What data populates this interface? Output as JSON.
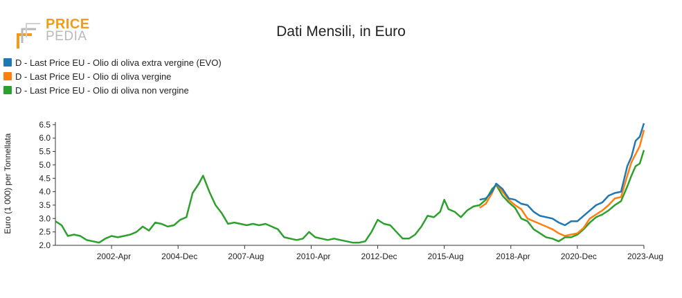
{
  "header": {
    "logo_line1": "PRICE",
    "logo_line2": "PEDIA",
    "title": "Dati Mensili, in Euro"
  },
  "colors": {
    "evo": "#1f77b4",
    "vergine": "#ff7f0e",
    "non_vergine": "#2ca02c",
    "brand_orange": "#f39a1e",
    "brand_grey": "#b9b9b9"
  },
  "legend": [
    {
      "label": "D - Last Price EU - Olio di oliva extra vergine (EVO)",
      "color": "#1f77b4"
    },
    {
      "label": "D - Last Price EU - Olio di oliva vergine",
      "color": "#ff7f0e"
    },
    {
      "label": "D - Last Price EU - Olio di oliva non vergine",
      "color": "#2ca02c"
    }
  ],
  "chart_data": {
    "type": "line",
    "title": "Dati Mensili, in Euro",
    "ylabel": "Euro (1 000) per Tonnellata",
    "xlabel": "",
    "ylim": [
      2.0,
      6.6
    ],
    "xlim": [
      "2000-01",
      "2023-08"
    ],
    "y_ticks": [
      "2.0",
      "2.5",
      "3.0",
      "3.5",
      "4.0",
      "4.5",
      "5.0",
      "5.5",
      "6.0",
      "6.5"
    ],
    "x_ticks": [
      {
        "label": "2002-Apr",
        "date": "2002-04"
      },
      {
        "label": "2004-Dec",
        "date": "2004-12"
      },
      {
        "label": "2007-Aug",
        "date": "2007-08"
      },
      {
        "label": "2010-Apr",
        "date": "2010-04"
      },
      {
        "label": "2012-Dec",
        "date": "2012-12"
      },
      {
        "label": "2015-Aug",
        "date": "2015-08"
      },
      {
        "label": "2018-Apr",
        "date": "2018-04"
      },
      {
        "label": "2020-Dec",
        "date": "2020-12"
      },
      {
        "label": "2023-Aug",
        "date": "2023-08"
      }
    ],
    "grid": false,
    "legend_position": "top-left",
    "series": [
      {
        "name": "D - Last Price EU - Olio di oliva extra vergine (EVO)",
        "color": "#1f77b4",
        "points": [
          [
            "2017-01",
            3.7
          ],
          [
            "2017-04",
            3.75
          ],
          [
            "2017-07",
            4.0
          ],
          [
            "2017-09",
            4.3
          ],
          [
            "2017-12",
            4.1
          ],
          [
            "2018-03",
            3.75
          ],
          [
            "2018-06",
            3.7
          ],
          [
            "2018-09",
            3.55
          ],
          [
            "2018-12",
            3.5
          ],
          [
            "2019-03",
            3.25
          ],
          [
            "2019-06",
            3.1
          ],
          [
            "2019-09",
            3.05
          ],
          [
            "2019-12",
            3.0
          ],
          [
            "2020-03",
            2.85
          ],
          [
            "2020-06",
            2.75
          ],
          [
            "2020-09",
            2.9
          ],
          [
            "2020-12",
            2.9
          ],
          [
            "2021-03",
            3.1
          ],
          [
            "2021-06",
            3.3
          ],
          [
            "2021-09",
            3.5
          ],
          [
            "2021-12",
            3.6
          ],
          [
            "2022-03",
            3.85
          ],
          [
            "2022-06",
            3.95
          ],
          [
            "2022-09",
            4.0
          ],
          [
            "2022-12",
            4.95
          ],
          [
            "2023-02",
            5.3
          ],
          [
            "2023-04",
            5.9
          ],
          [
            "2023-06",
            6.05
          ],
          [
            "2023-08",
            6.55
          ]
        ]
      },
      {
        "name": "D - Last Price EU - Olio di oliva vergine",
        "color": "#ff7f0e",
        "points": [
          [
            "2017-01",
            3.4
          ],
          [
            "2017-04",
            3.55
          ],
          [
            "2017-07",
            3.95
          ],
          [
            "2017-09",
            4.3
          ],
          [
            "2017-12",
            4.0
          ],
          [
            "2018-03",
            3.7
          ],
          [
            "2018-06",
            3.5
          ],
          [
            "2018-09",
            3.35
          ],
          [
            "2018-12",
            3.0
          ],
          [
            "2019-03",
            2.9
          ],
          [
            "2019-06",
            2.8
          ],
          [
            "2019-09",
            2.7
          ],
          [
            "2019-12",
            2.6
          ],
          [
            "2020-03",
            2.45
          ],
          [
            "2020-06",
            2.35
          ],
          [
            "2020-09",
            2.4
          ],
          [
            "2020-12",
            2.45
          ],
          [
            "2021-03",
            2.65
          ],
          [
            "2021-06",
            3.0
          ],
          [
            "2021-09",
            3.15
          ],
          [
            "2021-12",
            3.3
          ],
          [
            "2022-03",
            3.5
          ],
          [
            "2022-06",
            3.75
          ],
          [
            "2022-09",
            3.8
          ],
          [
            "2022-12",
            4.6
          ],
          [
            "2023-02",
            5.1
          ],
          [
            "2023-04",
            5.4
          ],
          [
            "2023-06",
            5.7
          ],
          [
            "2023-08",
            6.3
          ]
        ]
      },
      {
        "name": "D - Last Price EU - Olio di oliva non vergine",
        "color": "#2ca02c",
        "points": [
          [
            "2000-01",
            2.9
          ],
          [
            "2000-04",
            2.75
          ],
          [
            "2000-07",
            2.35
          ],
          [
            "2000-10",
            2.4
          ],
          [
            "2001-01",
            2.35
          ],
          [
            "2001-04",
            2.2
          ],
          [
            "2001-07",
            2.15
          ],
          [
            "2001-10",
            2.1
          ],
          [
            "2002-01",
            2.25
          ],
          [
            "2002-04",
            2.35
          ],
          [
            "2002-07",
            2.3
          ],
          [
            "2002-10",
            2.35
          ],
          [
            "2003-01",
            2.4
          ],
          [
            "2003-04",
            2.5
          ],
          [
            "2003-07",
            2.7
          ],
          [
            "2003-10",
            2.55
          ],
          [
            "2004-01",
            2.85
          ],
          [
            "2004-04",
            2.8
          ],
          [
            "2004-07",
            2.7
          ],
          [
            "2004-10",
            2.75
          ],
          [
            "2005-01",
            2.95
          ],
          [
            "2005-04",
            3.05
          ],
          [
            "2005-07",
            3.95
          ],
          [
            "2005-10",
            4.3
          ],
          [
            "2005-12",
            4.6
          ],
          [
            "2006-03",
            4.0
          ],
          [
            "2006-06",
            3.5
          ],
          [
            "2006-09",
            3.2
          ],
          [
            "2006-12",
            2.8
          ],
          [
            "2007-03",
            2.85
          ],
          [
            "2007-06",
            2.8
          ],
          [
            "2007-09",
            2.75
          ],
          [
            "2007-12",
            2.8
          ],
          [
            "2008-03",
            2.75
          ],
          [
            "2008-06",
            2.8
          ],
          [
            "2008-09",
            2.7
          ],
          [
            "2008-12",
            2.6
          ],
          [
            "2009-03",
            2.3
          ],
          [
            "2009-06",
            2.25
          ],
          [
            "2009-09",
            2.2
          ],
          [
            "2009-12",
            2.25
          ],
          [
            "2010-03",
            2.5
          ],
          [
            "2010-06",
            2.3
          ],
          [
            "2010-09",
            2.25
          ],
          [
            "2010-12",
            2.2
          ],
          [
            "2011-03",
            2.25
          ],
          [
            "2011-06",
            2.2
          ],
          [
            "2011-09",
            2.15
          ],
          [
            "2011-12",
            2.1
          ],
          [
            "2012-03",
            2.1
          ],
          [
            "2012-06",
            2.15
          ],
          [
            "2012-09",
            2.5
          ],
          [
            "2012-12",
            2.95
          ],
          [
            "2013-03",
            2.8
          ],
          [
            "2013-06",
            2.75
          ],
          [
            "2013-09",
            2.5
          ],
          [
            "2013-12",
            2.25
          ],
          [
            "2014-03",
            2.25
          ],
          [
            "2014-06",
            2.4
          ],
          [
            "2014-09",
            2.7
          ],
          [
            "2014-12",
            3.1
          ],
          [
            "2015-03",
            3.05
          ],
          [
            "2015-06",
            3.25
          ],
          [
            "2015-08",
            3.7
          ],
          [
            "2015-10",
            3.35
          ],
          [
            "2016-01",
            3.25
          ],
          [
            "2016-04",
            3.05
          ],
          [
            "2016-07",
            3.3
          ],
          [
            "2016-10",
            3.45
          ],
          [
            "2017-01",
            3.5
          ],
          [
            "2017-04",
            3.7
          ],
          [
            "2017-07",
            4.1
          ],
          [
            "2017-09",
            4.25
          ],
          [
            "2017-12",
            3.85
          ],
          [
            "2018-03",
            3.6
          ],
          [
            "2018-06",
            3.4
          ],
          [
            "2018-09",
            3.0
          ],
          [
            "2018-12",
            2.9
          ],
          [
            "2019-03",
            2.6
          ],
          [
            "2019-06",
            2.45
          ],
          [
            "2019-09",
            2.3
          ],
          [
            "2019-12",
            2.25
          ],
          [
            "2020-03",
            2.15
          ],
          [
            "2020-06",
            2.3
          ],
          [
            "2020-09",
            2.3
          ],
          [
            "2020-12",
            2.4
          ],
          [
            "2021-03",
            2.6
          ],
          [
            "2021-06",
            2.85
          ],
          [
            "2021-09",
            3.05
          ],
          [
            "2021-12",
            3.15
          ],
          [
            "2022-03",
            3.3
          ],
          [
            "2022-06",
            3.5
          ],
          [
            "2022-09",
            3.65
          ],
          [
            "2022-12",
            4.2
          ],
          [
            "2023-02",
            4.6
          ],
          [
            "2023-04",
            4.95
          ],
          [
            "2023-06",
            5.05
          ],
          [
            "2023-08",
            5.55
          ]
        ]
      }
    ]
  }
}
